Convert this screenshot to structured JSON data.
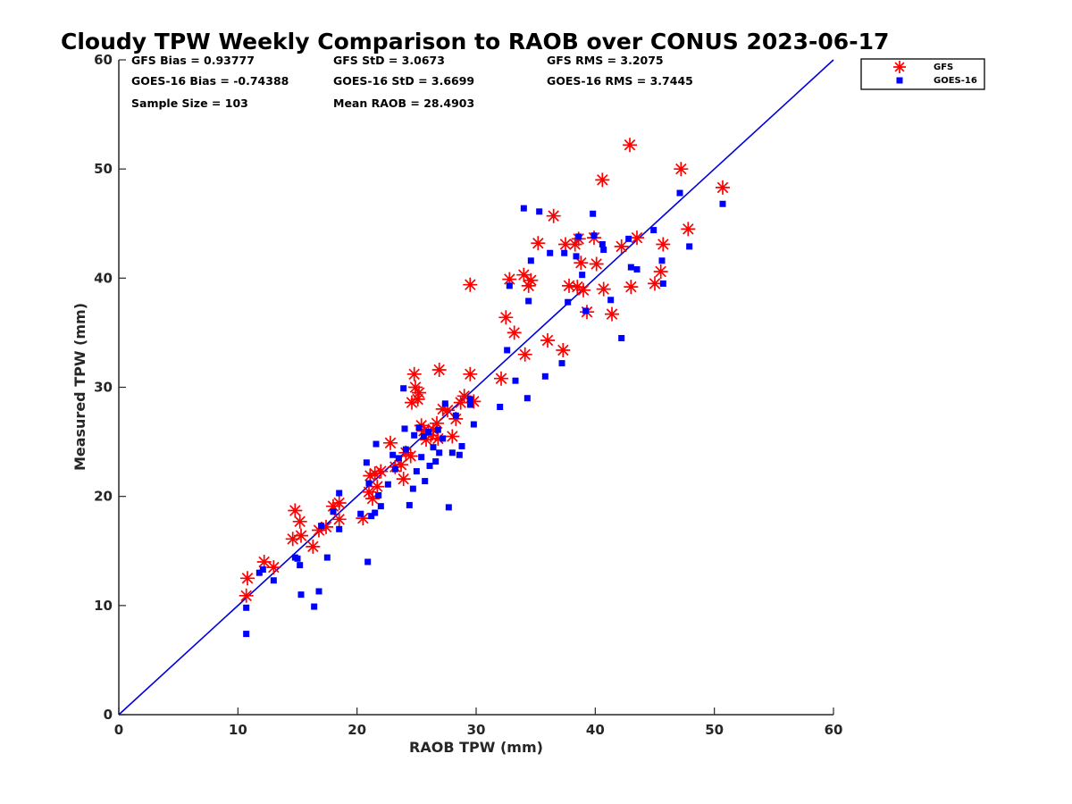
{
  "chart_data": {
    "type": "scatter",
    "title": "Cloudy TPW Weekly Comparison to RAOB over CONUS 2023-06-17",
    "xlabel": "RAOB TPW (mm)",
    "ylabel": "Measured TPW (mm)",
    "xlim": [
      0,
      60
    ],
    "ylim": [
      0,
      60
    ],
    "xticks": [
      "0",
      "10",
      "20",
      "30",
      "40",
      "50",
      "60"
    ],
    "yticks": [
      "0",
      "10",
      "20",
      "30",
      "40",
      "50",
      "60"
    ],
    "grid": false,
    "legend_position": "outside-top-right",
    "reference_line": "y = x",
    "stats": [
      [
        "GFS Bias = 0.93777",
        "GFS StD = 3.0673",
        "GFS RMS = 3.2075"
      ],
      [
        "GOES-16 Bias = -0.74388",
        "GOES-16 StD = 3.6699",
        "GOES-16 RMS = 3.7445"
      ],
      [
        "Sample Size = 103",
        "Mean RAOB = 28.4903"
      ]
    ],
    "series": [
      {
        "name": "GFS",
        "marker": "asterisk",
        "color": "#ff0000",
        "points": [
          [
            10.7,
            10.9
          ],
          [
            10.8,
            12.5
          ],
          [
            12.2,
            14.0
          ],
          [
            13.0,
            13.5
          ],
          [
            14.6,
            16.1
          ],
          [
            14.8,
            18.7
          ],
          [
            15.2,
            17.7
          ],
          [
            15.3,
            16.4
          ],
          [
            16.3,
            15.4
          ],
          [
            16.8,
            16.9
          ],
          [
            17.4,
            17.2
          ],
          [
            18.0,
            19.1
          ],
          [
            18.5,
            19.4
          ],
          [
            18.5,
            17.9
          ],
          [
            20.5,
            18.0
          ],
          [
            21.0,
            20.4
          ],
          [
            21.1,
            21.9
          ],
          [
            21.3,
            19.8
          ],
          [
            21.5,
            22.1
          ],
          [
            21.7,
            20.9
          ],
          [
            22.0,
            22.3
          ],
          [
            22.8,
            24.9
          ],
          [
            23.2,
            22.7
          ],
          [
            23.7,
            22.9
          ],
          [
            23.9,
            21.6
          ],
          [
            24.1,
            24.0
          ],
          [
            24.5,
            23.7
          ],
          [
            24.6,
            28.6
          ],
          [
            24.8,
            31.2
          ],
          [
            24.9,
            30.0
          ],
          [
            25.1,
            28.9
          ],
          [
            25.2,
            29.5
          ],
          [
            25.4,
            26.5
          ],
          [
            25.6,
            26.0
          ],
          [
            25.8,
            25.2
          ],
          [
            26.0,
            26.0
          ],
          [
            26.2,
            25.6
          ],
          [
            26.4,
            26.1
          ],
          [
            26.7,
            26.7
          ],
          [
            26.8,
            25.3
          ],
          [
            26.9,
            31.6
          ],
          [
            27.2,
            28.0
          ],
          [
            27.6,
            27.9
          ],
          [
            28.0,
            25.5
          ],
          [
            28.3,
            27.1
          ],
          [
            28.7,
            28.6
          ],
          [
            29.0,
            29.2
          ],
          [
            29.5,
            31.2
          ],
          [
            29.5,
            39.4
          ],
          [
            29.8,
            28.7
          ],
          [
            32.1,
            30.8
          ],
          [
            32.5,
            36.4
          ],
          [
            32.8,
            39.9
          ],
          [
            33.2,
            35.0
          ],
          [
            34.0,
            40.3
          ],
          [
            34.1,
            33.0
          ],
          [
            34.4,
            39.3
          ],
          [
            34.6,
            39.8
          ],
          [
            35.2,
            43.2
          ],
          [
            36.0,
            34.3
          ],
          [
            36.5,
            45.7
          ],
          [
            37.3,
            33.4
          ],
          [
            37.5,
            43.1
          ],
          [
            37.8,
            39.3
          ],
          [
            38.3,
            43.1
          ],
          [
            38.5,
            39.2
          ],
          [
            38.6,
            43.6
          ],
          [
            38.8,
            41.4
          ],
          [
            39.0,
            38.9
          ],
          [
            39.3,
            36.9
          ],
          [
            39.9,
            43.7
          ],
          [
            40.1,
            41.3
          ],
          [
            40.6,
            49.0
          ],
          [
            40.7,
            39.0
          ],
          [
            41.4,
            36.7
          ],
          [
            42.2,
            42.9
          ],
          [
            42.9,
            52.2
          ],
          [
            43.0,
            39.2
          ],
          [
            43.5,
            43.7
          ],
          [
            45.0,
            39.5
          ],
          [
            45.5,
            40.6
          ],
          [
            45.7,
            43.1
          ],
          [
            47.2,
            50.0
          ],
          [
            47.8,
            44.5
          ],
          [
            50.7,
            48.3
          ]
        ]
      },
      {
        "name": "GOES-16",
        "marker": "square",
        "color": "#0000ff",
        "points": [
          [
            10.7,
            7.4
          ],
          [
            10.7,
            9.8
          ],
          [
            11.8,
            13.0
          ],
          [
            12.1,
            13.3
          ],
          [
            13.0,
            12.3
          ],
          [
            14.8,
            14.4
          ],
          [
            15.0,
            14.3
          ],
          [
            15.2,
            13.7
          ],
          [
            15.3,
            11.0
          ],
          [
            16.4,
            9.9
          ],
          [
            16.8,
            11.3
          ],
          [
            17.0,
            17.3
          ],
          [
            17.5,
            14.4
          ],
          [
            18.0,
            18.6
          ],
          [
            18.5,
            20.3
          ],
          [
            18.5,
            17.0
          ],
          [
            20.3,
            18.4
          ],
          [
            20.8,
            23.1
          ],
          [
            20.9,
            14.0
          ],
          [
            21.0,
            21.2
          ],
          [
            21.2,
            18.2
          ],
          [
            21.5,
            18.5
          ],
          [
            21.6,
            24.8
          ],
          [
            21.8,
            20.1
          ],
          [
            22.0,
            19.1
          ],
          [
            22.6,
            21.1
          ],
          [
            23.0,
            23.8
          ],
          [
            23.2,
            22.5
          ],
          [
            23.5,
            23.5
          ],
          [
            23.9,
            29.9
          ],
          [
            24.0,
            26.2
          ],
          [
            24.1,
            24.3
          ],
          [
            24.4,
            19.2
          ],
          [
            24.7,
            20.7
          ],
          [
            24.8,
            25.6
          ],
          [
            25.0,
            22.3
          ],
          [
            25.2,
            26.3
          ],
          [
            25.4,
            23.6
          ],
          [
            25.6,
            25.5
          ],
          [
            25.7,
            21.4
          ],
          [
            26.0,
            25.9
          ],
          [
            26.1,
            22.8
          ],
          [
            26.4,
            24.5
          ],
          [
            26.6,
            23.2
          ],
          [
            26.8,
            26.1
          ],
          [
            26.9,
            24.0
          ],
          [
            27.2,
            25.3
          ],
          [
            27.4,
            28.5
          ],
          [
            27.7,
            19.0
          ],
          [
            28.0,
            24.0
          ],
          [
            28.3,
            27.4
          ],
          [
            28.6,
            23.8
          ],
          [
            28.8,
            24.6
          ],
          [
            29.5,
            28.4
          ],
          [
            29.5,
            28.9
          ],
          [
            29.8,
            26.6
          ],
          [
            32.0,
            28.2
          ],
          [
            32.6,
            33.4
          ],
          [
            32.8,
            39.3
          ],
          [
            33.3,
            30.6
          ],
          [
            34.0,
            46.4
          ],
          [
            34.3,
            29.0
          ],
          [
            34.4,
            37.9
          ],
          [
            34.6,
            41.6
          ],
          [
            35.3,
            46.1
          ],
          [
            35.8,
            31.0
          ],
          [
            36.2,
            42.3
          ],
          [
            37.2,
            32.2
          ],
          [
            37.4,
            42.3
          ],
          [
            37.7,
            37.8
          ],
          [
            38.4,
            42.0
          ],
          [
            38.6,
            43.8
          ],
          [
            38.9,
            40.3
          ],
          [
            39.2,
            37.0
          ],
          [
            39.8,
            45.9
          ],
          [
            39.9,
            43.9
          ],
          [
            40.6,
            43.1
          ],
          [
            40.7,
            42.6
          ],
          [
            41.3,
            38.0
          ],
          [
            42.2,
            34.5
          ],
          [
            42.8,
            43.6
          ],
          [
            43.0,
            41.0
          ],
          [
            43.5,
            40.8
          ],
          [
            44.9,
            44.4
          ],
          [
            45.6,
            41.6
          ],
          [
            45.7,
            39.5
          ],
          [
            47.1,
            47.8
          ],
          [
            47.9,
            42.9
          ],
          [
            50.7,
            46.8
          ]
        ]
      }
    ]
  }
}
